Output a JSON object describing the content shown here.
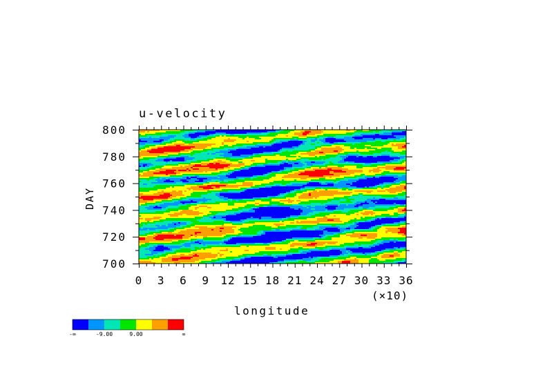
{
  "chart_data": {
    "type": "heatmap",
    "title": "u-velocity",
    "xlabel": "longitude",
    "x_multiplier_label": "(×10)",
    "ylabel": "DAY",
    "xlim": [
      0,
      36
    ],
    "ylim": [
      700,
      800
    ],
    "x_ticks": [
      "0",
      "3",
      "6",
      "9",
      "12",
      "15",
      "18",
      "21",
      "24",
      "27",
      "30",
      "33",
      "36"
    ],
    "y_ticks": [
      "700",
      "720",
      "740",
      "760",
      "780",
      "800"
    ],
    "colorbar": {
      "colors": [
        "#0000ff",
        "#0096ff",
        "#00e6b4",
        "#00e600",
        "#ffff00",
        "#ffa000",
        "#ff0000"
      ],
      "labels": [
        "-∞",
        "-9.00",
        "9.00",
        "∞"
      ]
    }
  }
}
